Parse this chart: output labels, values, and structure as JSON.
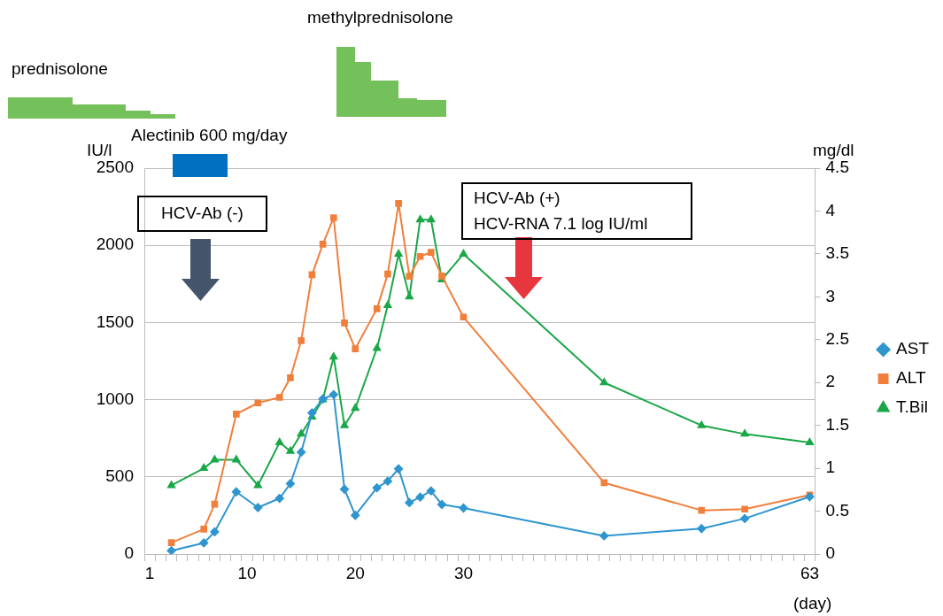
{
  "chart_data": {
    "type": "line",
    "categories": [
      "1",
      null,
      null,
      null,
      null,
      null,
      null,
      null,
      null,
      "10",
      null,
      null,
      null,
      null,
      null,
      null,
      null,
      null,
      null,
      "20",
      null,
      null,
      null,
      null,
      null,
      null,
      null,
      null,
      null,
      "30",
      null,
      null,
      null,
      null,
      null,
      null,
      null,
      null,
      null,
      null,
      null,
      null,
      null,
      null,
      null,
      null,
      null,
      null,
      null,
      null,
      null,
      null,
      null,
      null,
      null,
      null,
      null,
      null,
      null,
      null,
      null,
      "63"
    ],
    "series": [
      {
        "name": "AST",
        "color": "#2e95cf",
        "marker": "diamond",
        "axis": "y",
        "values": [
          null,
          null,
          22,
          null,
          null,
          72,
          144,
          null,
          403,
          null,
          301,
          null,
          361,
          456,
          660,
          915,
          1005,
          1033,
          420,
          251,
          null,
          429,
          472,
          552,
          333,
          369,
          409,
          321,
          null,
          298,
          null,
          null,
          null,
          null,
          null,
          null,
          null,
          null,
          null,
          null,
          null,
          null,
          118,
          null,
          null,
          null,
          null,
          null,
          null,
          null,
          null,
          165,
          null,
          null,
          null,
          230,
          null,
          null,
          null,
          null,
          null,
          371
        ]
      },
      {
        "name": "ALT",
        "color": "#f07f3c",
        "marker": "square",
        "axis": "y",
        "values": [
          null,
          null,
          74,
          null,
          null,
          161,
          323,
          null,
          907,
          null,
          979,
          null,
          1015,
          1142,
          1383,
          1810,
          2008,
          2179,
          1497,
          1330,
          null,
          1589,
          1814,
          2271,
          1800,
          1928,
          1955,
          1801,
          null,
          1535,
          null,
          null,
          null,
          null,
          null,
          null,
          null,
          null,
          null,
          null,
          null,
          null,
          462,
          null,
          null,
          null,
          null,
          null,
          null,
          null,
          null,
          283,
          null,
          null,
          null,
          291,
          null,
          null,
          null,
          null,
          null,
          383
        ]
      },
      {
        "name": "T.Bil",
        "color": "#1aa748",
        "marker": "triangle",
        "axis": "y2",
        "values": [
          null,
          null,
          0.8,
          null,
          null,
          1.0,
          1.1,
          null,
          1.1,
          null,
          0.8,
          null,
          1.3,
          1.2,
          1.4,
          1.6,
          1.8,
          2.3,
          1.5,
          1.7,
          null,
          2.4,
          2.9,
          3.5,
          3.0,
          3.9,
          3.9,
          3.2,
          null,
          3.5,
          null,
          null,
          null,
          null,
          null,
          null,
          null,
          null,
          null,
          null,
          null,
          null,
          2.0,
          null,
          null,
          null,
          null,
          null,
          null,
          null,
          null,
          1.5,
          null,
          null,
          null,
          1.4,
          null,
          null,
          null,
          null,
          null,
          1.3
        ]
      }
    ],
    "ylim": [
      0,
      2500
    ],
    "yticks": [
      0,
      500,
      1000,
      1500,
      2000,
      2500
    ],
    "y2lim": [
      0,
      4.5
    ],
    "y2ticks": [
      0,
      0.5,
      1,
      1.5,
      2,
      2.5,
      3,
      3.5,
      4,
      4.5
    ],
    "ylabel": "IU/l",
    "y2label": "mg/dl",
    "xlabel": "(day)",
    "annotations": [
      "prednisolone",
      "methylprednisolone",
      "Alectinib 600 mg/day",
      "HCV-Ab (-)",
      "HCV-Ab (+)\nHCV-RNA 7.1 log IU/ml"
    ],
    "grid": "y",
    "legend": "right"
  }
}
